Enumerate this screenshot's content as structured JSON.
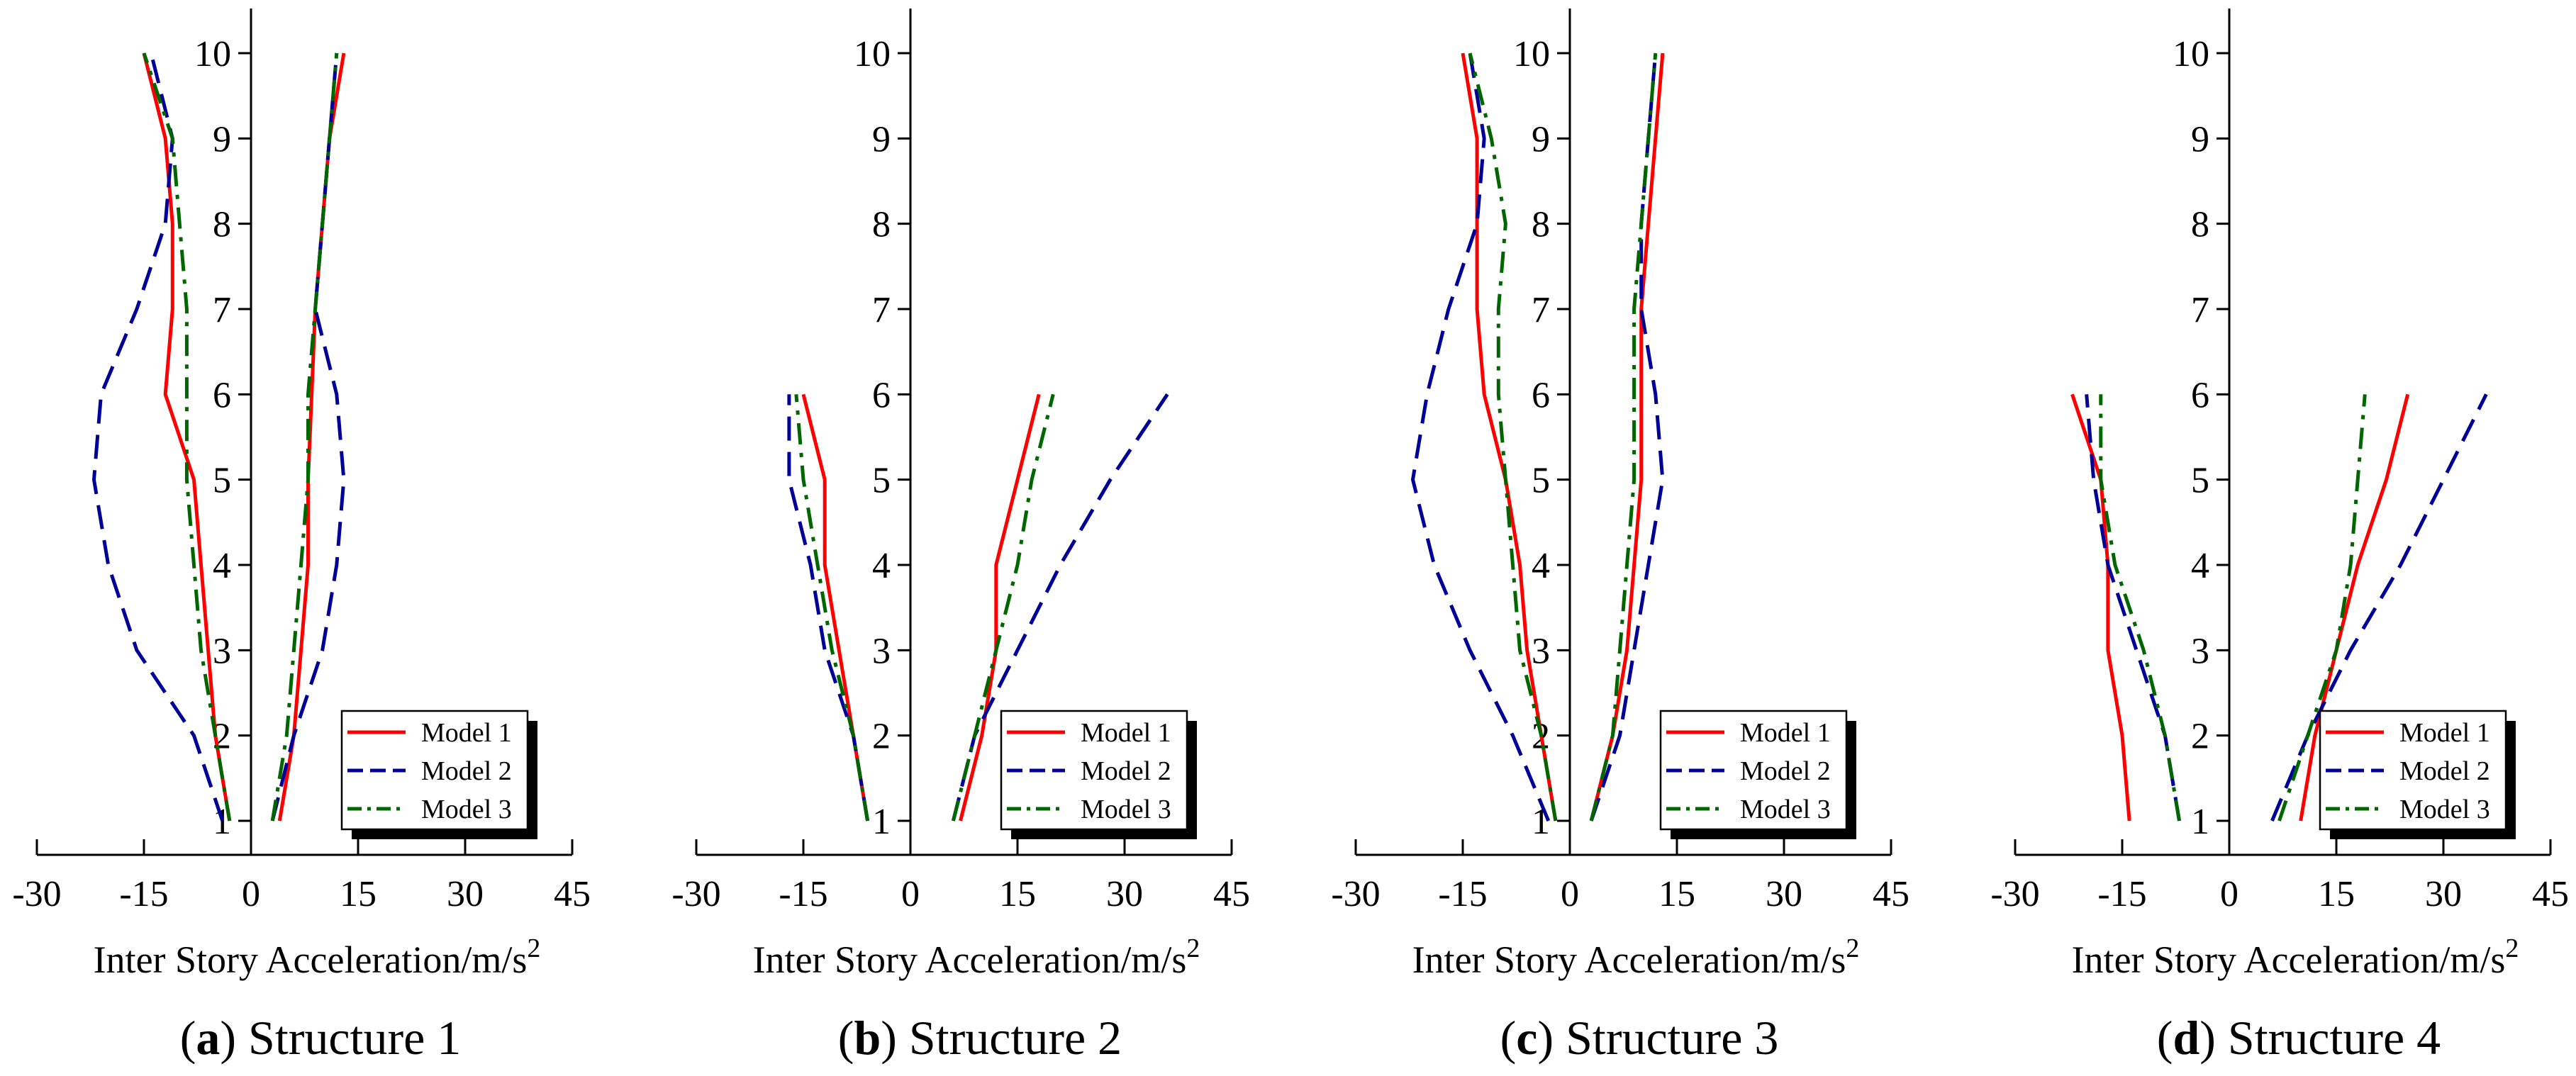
{
  "chart_data": [
    {
      "type": "line",
      "caption_letter": "a",
      "caption_text": "Structure 1",
      "xlabel": "Inter Story Acceleration/m/s",
      "xlabel_sup": "2",
      "xlim": [
        -30,
        45
      ],
      "ylim": [
        1,
        10
      ],
      "xticks": [
        "-30",
        "-15",
        "0",
        "15",
        "30",
        "45"
      ],
      "yticks": [
        "1",
        "2",
        "3",
        "4",
        "5",
        "6",
        "7",
        "8",
        "9",
        "10"
      ],
      "legend_position": "bottom-right",
      "series": [
        {
          "name": "Model 1",
          "side": "neg",
          "color": "#ff0000",
          "dash": "solid",
          "points": [
            [
              -3,
              1
            ],
            [
              -5,
              2
            ],
            [
              -6,
              3
            ],
            [
              -7,
              4
            ],
            [
              -8,
              5
            ],
            [
              -12,
              6
            ],
            [
              -11,
              7
            ],
            [
              -11,
              8
            ],
            [
              -12,
              9
            ],
            [
              -15,
              10
            ]
          ]
        },
        {
          "name": "Model 1",
          "side": "pos",
          "color": "#ff0000",
          "dash": "solid",
          "points": [
            [
              4,
              1
            ],
            [
              6,
              2
            ],
            [
              7,
              3
            ],
            [
              8,
              4
            ],
            [
              8,
              5
            ],
            [
              8.5,
              6
            ],
            [
              9,
              7
            ],
            [
              10,
              8
            ],
            [
              11,
              9
            ],
            [
              13,
              10
            ]
          ]
        },
        {
          "name": "Model 2",
          "side": "neg",
          "color": "#000099",
          "dash": "dash",
          "points": [
            [
              -4,
              1
            ],
            [
              -8,
              2
            ],
            [
              -16,
              3
            ],
            [
              -20,
              4
            ],
            [
              -22,
              5
            ],
            [
              -21,
              6
            ],
            [
              -16,
              7
            ],
            [
              -12,
              8
            ],
            [
              -11,
              9
            ],
            [
              -14,
              10
            ]
          ]
        },
        {
          "name": "Model 2",
          "side": "pos",
          "color": "#000099",
          "dash": "dash",
          "points": [
            [
              3,
              1
            ],
            [
              6,
              2
            ],
            [
              10,
              3
            ],
            [
              12,
              4
            ],
            [
              13,
              5
            ],
            [
              12,
              6
            ],
            [
              9,
              7
            ],
            [
              10,
              8
            ],
            [
              11,
              9
            ],
            [
              12,
              10
            ]
          ]
        },
        {
          "name": "Model 3",
          "side": "neg",
          "color": "#006600",
          "dash": "dashdot",
          "points": [
            [
              -3,
              1
            ],
            [
              -5,
              2
            ],
            [
              -7,
              3
            ],
            [
              -8,
              4
            ],
            [
              -9,
              5
            ],
            [
              -9,
              6
            ],
            [
              -9,
              7
            ],
            [
              -10,
              8
            ],
            [
              -11,
              9
            ],
            [
              -15,
              10
            ]
          ]
        },
        {
          "name": "Model 3",
          "side": "pos",
          "color": "#006600",
          "dash": "dashdot",
          "points": [
            [
              3,
              1
            ],
            [
              5,
              2
            ],
            [
              6,
              3
            ],
            [
              7,
              4
            ],
            [
              8,
              5
            ],
            [
              8,
              6
            ],
            [
              9,
              7
            ],
            [
              10,
              8
            ],
            [
              11,
              9
            ],
            [
              12,
              10
            ]
          ]
        }
      ]
    },
    {
      "type": "line",
      "caption_letter": "b",
      "caption_text": "Structure 2",
      "xlabel": "Inter Story Acceleration/m/s",
      "xlabel_sup": "2",
      "xlim": [
        -30,
        45
      ],
      "ylim": [
        1,
        10
      ],
      "xticks": [
        "-30",
        "-15",
        "0",
        "15",
        "30",
        "45"
      ],
      "yticks": [
        "1",
        "2",
        "3",
        "4",
        "5",
        "6",
        "7",
        "8",
        "9",
        "10"
      ],
      "legend_position": "bottom-right",
      "series": [
        {
          "name": "Model 1",
          "side": "neg",
          "color": "#ff0000",
          "dash": "solid",
          "points": [
            [
              -6,
              1
            ],
            [
              -8,
              2
            ],
            [
              -10,
              3
            ],
            [
              -12,
              4
            ],
            [
              -12,
              5
            ],
            [
              -15,
              6
            ]
          ]
        },
        {
          "name": "Model 1",
          "side": "pos",
          "color": "#ff0000",
          "dash": "solid",
          "points": [
            [
              7,
              1
            ],
            [
              10,
              2
            ],
            [
              12,
              3
            ],
            [
              12,
              4
            ],
            [
              15,
              5
            ],
            [
              18,
              6
            ]
          ]
        },
        {
          "name": "Model 2",
          "side": "neg",
          "color": "#000099",
          "dash": "dash",
          "points": [
            [
              -6,
              1
            ],
            [
              -8,
              2
            ],
            [
              -12,
              3
            ],
            [
              -14,
              4
            ],
            [
              -17,
              5
            ],
            [
              -17,
              6
            ]
          ]
        },
        {
          "name": "Model 2",
          "side": "pos",
          "color": "#000099",
          "dash": "dash",
          "points": [
            [
              6,
              1
            ],
            [
              9,
              2
            ],
            [
              15,
              3
            ],
            [
              21,
              4
            ],
            [
              28,
              5
            ],
            [
              36,
              6
            ]
          ]
        },
        {
          "name": "Model 3",
          "side": "neg",
          "color": "#006600",
          "dash": "dashdot",
          "points": [
            [
              -6,
              1
            ],
            [
              -8,
              2
            ],
            [
              -11,
              3
            ],
            [
              -13,
              4
            ],
            [
              -15,
              5
            ],
            [
              -16,
              6
            ]
          ]
        },
        {
          "name": "Model 3",
          "side": "pos",
          "color": "#006600",
          "dash": "dashdot",
          "points": [
            [
              6,
              1
            ],
            [
              9,
              2
            ],
            [
              12,
              3
            ],
            [
              15,
              4
            ],
            [
              17,
              5
            ],
            [
              20,
              6
            ]
          ]
        }
      ]
    },
    {
      "type": "line",
      "caption_letter": "c",
      "caption_text": "Structure 3",
      "xlabel": "Inter Story Acceleration/m/s",
      "xlabel_sup": "2",
      "xlim": [
        -30,
        45
      ],
      "ylim": [
        1,
        10
      ],
      "xticks": [
        "-30",
        "-15",
        "0",
        "15",
        "30",
        "45"
      ],
      "yticks": [
        "1",
        "2",
        "3",
        "4",
        "5",
        "6",
        "7",
        "8",
        "9",
        "10"
      ],
      "legend_position": "bottom-right",
      "series": [
        {
          "name": "Model 1",
          "side": "neg",
          "color": "#ff0000",
          "dash": "solid",
          "points": [
            [
              -2,
              1
            ],
            [
              -4,
              2
            ],
            [
              -6,
              3
            ],
            [
              -7,
              4
            ],
            [
              -9,
              5
            ],
            [
              -12,
              6
            ],
            [
              -13,
              7
            ],
            [
              -13,
              8
            ],
            [
              -13,
              9
            ],
            [
              -15,
              10
            ]
          ]
        },
        {
          "name": "Model 1",
          "side": "pos",
          "color": "#ff0000",
          "dash": "solid",
          "points": [
            [
              3,
              1
            ],
            [
              6,
              2
            ],
            [
              8,
              3
            ],
            [
              9,
              4
            ],
            [
              10,
              5
            ],
            [
              10,
              6
            ],
            [
              10,
              7
            ],
            [
              11,
              8
            ],
            [
              12,
              9
            ],
            [
              13,
              10
            ]
          ]
        },
        {
          "name": "Model 2",
          "side": "neg",
          "color": "#000099",
          "dash": "dash",
          "points": [
            [
              -3,
              1
            ],
            [
              -8,
              2
            ],
            [
              -14,
              3
            ],
            [
              -19,
              4
            ],
            [
              -22,
              5
            ],
            [
              -20,
              6
            ],
            [
              -17,
              7
            ],
            [
              -13,
              8
            ],
            [
              -12,
              9
            ],
            [
              -14,
              10
            ]
          ]
        },
        {
          "name": "Model 2",
          "side": "pos",
          "color": "#000099",
          "dash": "dash",
          "points": [
            [
              3,
              1
            ],
            [
              7,
              2
            ],
            [
              9,
              3
            ],
            [
              11,
              4
            ],
            [
              13,
              5
            ],
            [
              12,
              6
            ],
            [
              10,
              7
            ],
            [
              10,
              8
            ],
            [
              11,
              9
            ],
            [
              12,
              10
            ]
          ]
        },
        {
          "name": "Model 3",
          "side": "neg",
          "color": "#006600",
          "dash": "dashdot",
          "points": [
            [
              -2,
              1
            ],
            [
              -4,
              2
            ],
            [
              -7,
              3
            ],
            [
              -8,
              4
            ],
            [
              -9,
              5
            ],
            [
              -10,
              6
            ],
            [
              -10,
              7
            ],
            [
              -9,
              8
            ],
            [
              -11,
              9
            ],
            [
              -14,
              10
            ]
          ]
        },
        {
          "name": "Model 3",
          "side": "pos",
          "color": "#006600",
          "dash": "dashdot",
          "points": [
            [
              3,
              1
            ],
            [
              6,
              2
            ],
            [
              7,
              3
            ],
            [
              8,
              4
            ],
            [
              9,
              5
            ],
            [
              9,
              6
            ],
            [
              9,
              7
            ],
            [
              10,
              8
            ],
            [
              11,
              9
            ],
            [
              12,
              10
            ]
          ]
        }
      ]
    },
    {
      "type": "line",
      "caption_letter": "d",
      "caption_text": "Structure 4",
      "xlabel": "Inter Story Acceleration/m/s",
      "xlabel_sup": "2",
      "xlim": [
        -30,
        45
      ],
      "ylim": [
        1,
        10
      ],
      "xticks": [
        "-30",
        "-15",
        "0",
        "15",
        "30",
        "45"
      ],
      "yticks": [
        "1",
        "2",
        "3",
        "4",
        "5",
        "6",
        "7",
        "8",
        "9",
        "10"
      ],
      "legend_position": "bottom-right",
      "series": [
        {
          "name": "Model 1",
          "side": "neg",
          "color": "#ff0000",
          "dash": "solid",
          "points": [
            [
              -14,
              1
            ],
            [
              -15,
              2
            ],
            [
              -17,
              3
            ],
            [
              -17,
              4
            ],
            [
              -18,
              5
            ],
            [
              -22,
              6
            ]
          ]
        },
        {
          "name": "Model 1",
          "side": "pos",
          "color": "#ff0000",
          "dash": "solid",
          "points": [
            [
              10,
              1
            ],
            [
              12,
              2
            ],
            [
              15,
              3
            ],
            [
              18,
              4
            ],
            [
              22,
              5
            ],
            [
              25,
              6
            ]
          ]
        },
        {
          "name": "Model 2",
          "side": "neg",
          "color": "#000099",
          "dash": "dash",
          "points": [
            [
              -7,
              1
            ],
            [
              -9,
              2
            ],
            [
              -13,
              3
            ],
            [
              -17,
              4
            ],
            [
              -19,
              5
            ],
            [
              -20,
              6
            ]
          ]
        },
        {
          "name": "Model 2",
          "side": "pos",
          "color": "#000099",
          "dash": "dash",
          "points": [
            [
              6,
              1
            ],
            [
              11,
              2
            ],
            [
              17,
              3
            ],
            [
              24,
              4
            ],
            [
              30,
              5
            ],
            [
              36,
              6
            ]
          ]
        },
        {
          "name": "Model 3",
          "side": "neg",
          "color": "#006600",
          "dash": "dashdot",
          "points": [
            [
              -7,
              1
            ],
            [
              -9,
              2
            ],
            [
              -12,
              3
            ],
            [
              -16,
              4
            ],
            [
              -18,
              5
            ],
            [
              -18,
              6
            ]
          ]
        },
        {
          "name": "Model 3",
          "side": "pos",
          "color": "#006600",
          "dash": "dashdot",
          "points": [
            [
              7,
              1
            ],
            [
              11,
              2
            ],
            [
              15,
              3
            ],
            [
              17,
              4
            ],
            [
              18,
              5
            ],
            [
              19,
              6
            ]
          ]
        }
      ]
    }
  ]
}
